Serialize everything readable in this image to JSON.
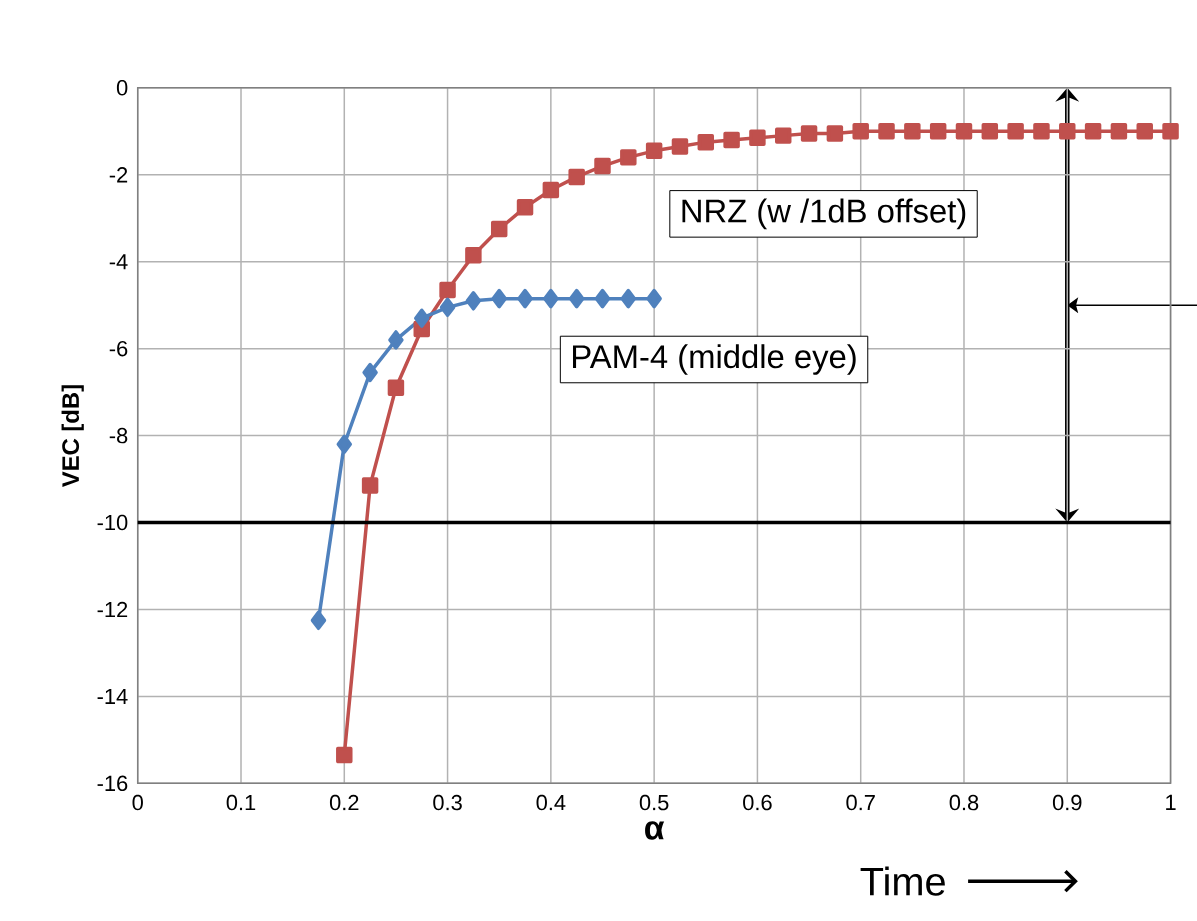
{
  "chart_data": {
    "type": "line",
    "xlabel": "α",
    "ylabel": "VEC [dB]",
    "xlim": [
      0,
      1
    ],
    "ylim": [
      -16,
      0
    ],
    "xticks": [
      0,
      0.1,
      0.2,
      0.3,
      0.4,
      0.5,
      0.6,
      0.7,
      0.8,
      0.9,
      1
    ],
    "yticks": [
      -16,
      -14,
      -12,
      -10,
      -8,
      -6,
      -4,
      -2,
      0
    ],
    "grid": true,
    "series": [
      {
        "name": "NRZ (w /1dB offset)",
        "color": "#c0504d",
        "marker": "square",
        "x": [
          0.2,
          0.225,
          0.25,
          0.275,
          0.3,
          0.325,
          0.35,
          0.375,
          0.4,
          0.425,
          0.45,
          0.475,
          0.5,
          0.525,
          0.55,
          0.575,
          0.6,
          0.625,
          0.65,
          0.675,
          0.7,
          0.725,
          0.75,
          0.775,
          0.8,
          0.825,
          0.85,
          0.875,
          0.9,
          0.925,
          0.95,
          0.975,
          1.0
        ],
        "values": [
          -15.35,
          -9.15,
          -6.9,
          -5.55,
          -4.65,
          -3.85,
          -3.25,
          -2.75,
          -2.35,
          -2.05,
          -1.8,
          -1.6,
          -1.45,
          -1.35,
          -1.25,
          -1.2,
          -1.15,
          -1.1,
          -1.05,
          -1.05,
          -1.0,
          -1.0,
          -1.0,
          -1.0,
          -1.0,
          -1.0,
          -1.0,
          -1.0,
          -1.0,
          -1.0,
          -1.0,
          -1.0,
          -1.0
        ]
      },
      {
        "name": "PAM-4 (middle eye)",
        "color": "#4f81bd",
        "marker": "diamond",
        "x": [
          0.175,
          0.2,
          0.225,
          0.25,
          0.275,
          0.3,
          0.325,
          0.35,
          0.375,
          0.4,
          0.425,
          0.45,
          0.475,
          0.5
        ],
        "values": [
          -12.25,
          -8.2,
          -6.55,
          -5.8,
          -5.3,
          -5.05,
          -4.9,
          -4.85,
          -4.85,
          -4.85,
          -4.85,
          -4.85,
          -4.85,
          -4.85
        ]
      }
    ],
    "ref_lines": [
      {
        "axis": "y",
        "value": -10,
        "color": "#000000"
      }
    ],
    "annotations": [
      "Time"
    ]
  }
}
